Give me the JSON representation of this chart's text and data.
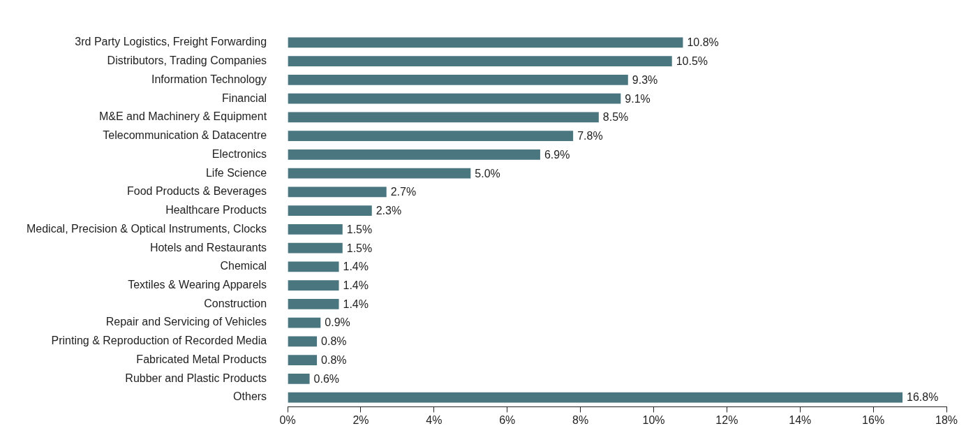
{
  "chart_data": {
    "type": "bar",
    "orientation": "horizontal",
    "categories": [
      "3rd Party Logistics, Freight Forwarding",
      "Distributors, Trading Companies",
      "Information Technology",
      "Financial",
      "M&E and Machinery & Equipment",
      "Telecommunication & Datacentre",
      "Electronics",
      "Life Science",
      "Food Products & Beverages",
      "Healthcare Products",
      "Medical, Precision & Optical Instruments, Clocks",
      "Hotels and Restaurants",
      "Chemical",
      "Textiles & Wearing Apparels",
      "Construction",
      "Repair and Servicing of Vehicles",
      "Printing & Reproduction of Recorded Media",
      "Fabricated Metal Products",
      "Rubber and Plastic Products",
      "Others"
    ],
    "values": [
      10.8,
      10.5,
      9.3,
      9.1,
      8.5,
      7.8,
      6.9,
      5.0,
      2.7,
      2.3,
      1.5,
      1.5,
      1.4,
      1.4,
      1.4,
      0.9,
      0.8,
      0.8,
      0.6,
      16.8
    ],
    "value_labels": [
      "10.8%",
      "10.5%",
      "9.3%",
      "9.1%",
      "8.5%",
      "7.8%",
      "6.9%",
      "5.0%",
      "2.7%",
      "2.3%",
      "1.5%",
      "1.5%",
      "1.4%",
      "1.4%",
      "1.4%",
      "0.9%",
      "0.8%",
      "0.8%",
      "0.6%",
      "16.8%"
    ],
    "color": "#4a7680",
    "xlim": [
      0,
      18
    ],
    "xticks": [
      {
        "value": 0,
        "label": "0%"
      },
      {
        "value": 2,
        "label": "2%"
      },
      {
        "value": 4,
        "label": "4%"
      },
      {
        "value": 6,
        "label": "6%"
      },
      {
        "value": 8,
        "label": "8%"
      },
      {
        "value": 10,
        "label": "10%"
      },
      {
        "value": 12,
        "label": "12%"
      },
      {
        "value": 14,
        "label": "14%"
      },
      {
        "value": 16,
        "label": "16%"
      },
      {
        "value": 18,
        "label": "18%"
      }
    ],
    "grid": false,
    "legend": false
  }
}
